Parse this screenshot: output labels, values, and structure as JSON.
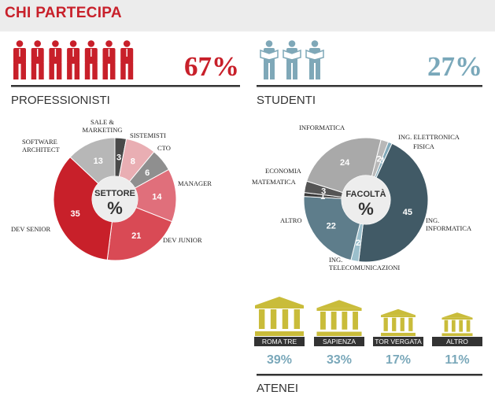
{
  "header": {
    "title": "CHI PARTECIPA"
  },
  "colors": {
    "red": "#c8202a",
    "blue": "#7fa8b8",
    "gold": "#c9bc3a",
    "dark": "#333333"
  },
  "icons": {
    "person": "person-icon",
    "student": "student-reading-icon",
    "building": "university-building-icon"
  },
  "professionisti": {
    "label": "PROFESSIONISTI",
    "percent_text": "67%",
    "icon_count": 7
  },
  "studenti": {
    "label": "STUDENTI",
    "percent_text": "27%",
    "icon_count": 3
  },
  "atenei": {
    "label": "ATENEI"
  },
  "chart_data": [
    {
      "type": "pie",
      "center_title": "SETTORE",
      "center_symbol": "%",
      "slices": [
        {
          "label": "SALE & MARKETING",
          "value": 3,
          "color": "#4a4a4a"
        },
        {
          "label": "SISTEMISTI",
          "value": 8,
          "color": "#e9aeb3"
        },
        {
          "label": "CTO",
          "value": 6,
          "color": "#8f8f8f"
        },
        {
          "label": "MANAGER",
          "value": 14,
          "color": "#e06f7b"
        },
        {
          "label": "DEV JUNIOR",
          "value": 21,
          "color": "#d94a55"
        },
        {
          "label": "DEV SENIOR",
          "value": 35,
          "color": "#c8202a"
        },
        {
          "label": "SOFTWARE ARCHITECT",
          "value": 13,
          "color": "#b7b7b7"
        }
      ]
    },
    {
      "type": "pie",
      "center_title": "FACOLTÀ",
      "center_symbol": "%",
      "slices": [
        {
          "label": "ING. ELETTRONICA",
          "value": 2,
          "color": "#b8b8b8"
        },
        {
          "label": "FISICA",
          "value": 1,
          "color": "#7fa8b8"
        },
        {
          "label": "ING. INFORMATICA",
          "value": 45,
          "color": "#415a66"
        },
        {
          "label": "ING. TELECOMUNICAZIONI",
          "value": 2,
          "color": "#9bbfcc"
        },
        {
          "label": "ALTRO",
          "value": 22,
          "color": "#5e7d8b"
        },
        {
          "label": "MATEMATICA",
          "value": 1,
          "color": "#3a3a3a"
        },
        {
          "label": "ECONOMIA",
          "value": 3,
          "color": "#555555"
        },
        {
          "label": "INFORMATICA",
          "value": 24,
          "color": "#a9a9a9"
        }
      ]
    },
    {
      "type": "bar",
      "categories": [
        "ROMA TRE",
        "SAPIENZA",
        "TOR VERGATA",
        "ALTRO"
      ],
      "values": [
        39,
        33,
        17,
        11
      ],
      "value_labels": [
        "39%",
        "33%",
        "17%",
        "11%"
      ]
    }
  ]
}
